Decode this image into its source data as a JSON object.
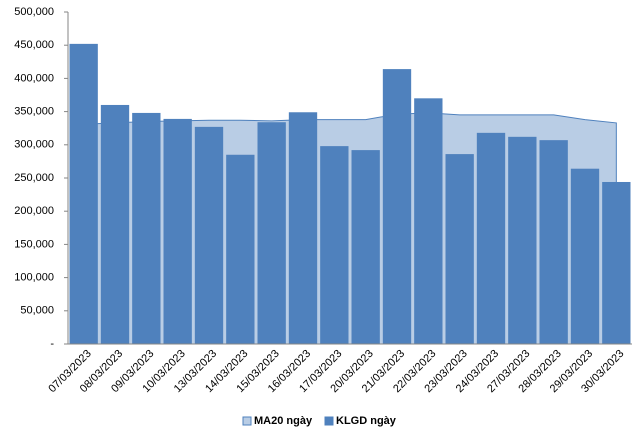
{
  "chart_data": {
    "type": "bar",
    "categories": [
      "07/03/2023",
      "08/03/2023",
      "09/03/2023",
      "10/03/2023",
      "13/03/2023",
      "14/03/2023",
      "15/03/2023",
      "16/03/2023",
      "17/03/2023",
      "20/03/2023",
      "21/03/2023",
      "22/03/2023",
      "23/03/2023",
      "24/03/2023",
      "27/03/2023",
      "28/03/2023",
      "29/03/2023",
      "30/03/2023"
    ],
    "series": [
      {
        "name": "MA20 ngày",
        "type": "area",
        "color": "#b9cde5",
        "values": [
          331000,
          333000,
          335000,
          336000,
          337000,
          337000,
          336000,
          338000,
          338000,
          338000,
          346000,
          348000,
          345000,
          345000,
          345000,
          345000,
          338000,
          333000
        ]
      },
      {
        "name": "KLGD ngày",
        "type": "bar",
        "color": "#4f81bd",
        "values": [
          452000,
          360000,
          348000,
          339000,
          327000,
          285000,
          334000,
          349000,
          298000,
          292000,
          414000,
          370000,
          286000,
          318000,
          312000,
          307000,
          264000,
          244000
        ]
      }
    ],
    "ylim": [
      0,
      500000
    ],
    "yticks": [
      {
        "value": 0,
        "label": "-"
      },
      {
        "value": 50000,
        "label": "50,000"
      },
      {
        "value": 100000,
        "label": "100,000"
      },
      {
        "value": 150000,
        "label": "150,000"
      },
      {
        "value": 200000,
        "label": "200,000"
      },
      {
        "value": 250000,
        "label": "250,000"
      },
      {
        "value": 300000,
        "label": "300,000"
      },
      {
        "value": 350000,
        "label": "350,000"
      },
      {
        "value": 400000,
        "label": "400,000"
      },
      {
        "value": 450000,
        "label": "450,000"
      },
      {
        "value": 500000,
        "label": "500,000"
      }
    ],
    "grid": false,
    "legend": "bottom"
  }
}
